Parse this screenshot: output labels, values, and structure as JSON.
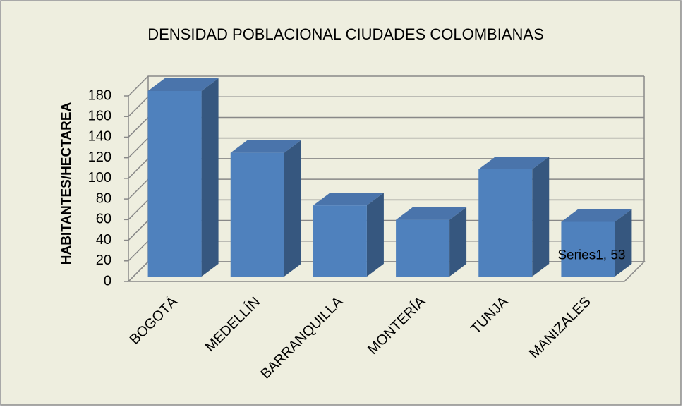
{
  "chart_data": {
    "type": "bar3d",
    "title": "DENSIDAD POBLACIONAL CIUDADES COLOMBIANAS",
    "y_label": "HABITANTES/HECTAREA",
    "categories": [
      "BOGOTÁ",
      "MEDELLÍN",
      "BARRANQUILLA",
      "MONTERÍA",
      "TUNJA",
      "MANIZALES"
    ],
    "values": [
      180,
      120,
      69,
      55,
      104,
      53
    ],
    "value_labels": [
      null,
      null,
      null,
      null,
      null,
      "Series1, 53"
    ],
    "color": "#4f81bd",
    "ylim": [
      0,
      180
    ],
    "yticks": [
      0,
      20,
      40,
      60,
      80,
      100,
      120,
      140,
      160,
      180
    ],
    "grid": true
  }
}
